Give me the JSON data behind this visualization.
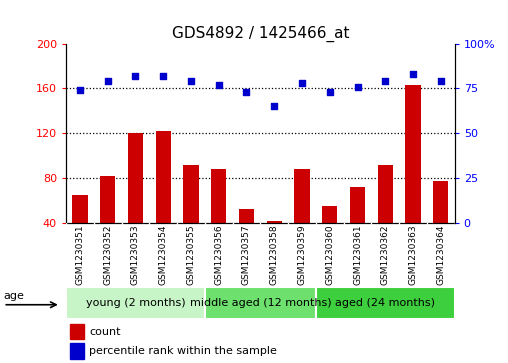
{
  "title": "GDS4892 / 1425466_at",
  "samples": [
    "GSM1230351",
    "GSM1230352",
    "GSM1230353",
    "GSM1230354",
    "GSM1230355",
    "GSM1230356",
    "GSM1230357",
    "GSM1230358",
    "GSM1230359",
    "GSM1230360",
    "GSM1230361",
    "GSM1230362",
    "GSM1230363",
    "GSM1230364"
  ],
  "counts": [
    65,
    82,
    120,
    122,
    92,
    88,
    53,
    42,
    88,
    55,
    72,
    92,
    163,
    78
  ],
  "percentiles": [
    74,
    79,
    82,
    82,
    79,
    77,
    73,
    65,
    78,
    73,
    76,
    79,
    83,
    79
  ],
  "groups": [
    {
      "label": "young (2 months)",
      "start": 0,
      "end": 4,
      "color": "#c8f5c8"
    },
    {
      "label": "middle aged (12 months)",
      "start": 5,
      "end": 8,
      "color": "#6de06d"
    },
    {
      "label": "aged (24 months)",
      "start": 9,
      "end": 13,
      "color": "#3ecf3e"
    }
  ],
  "bar_color": "#CC0000",
  "scatter_color": "#0000CC",
  "left_ylim": [
    40,
    200
  ],
  "right_ylim": [
    0,
    100
  ],
  "left_yticks": [
    40,
    80,
    120,
    160,
    200
  ],
  "right_yticks": [
    0,
    25,
    50,
    75,
    100
  ],
  "dotted_vals": [
    80,
    120,
    160
  ],
  "title_fontsize": 11,
  "sample_fontsize": 6.5,
  "axis_tick_fontsize": 8,
  "group_fontsize": 8,
  "bg_color": "#cccccc"
}
